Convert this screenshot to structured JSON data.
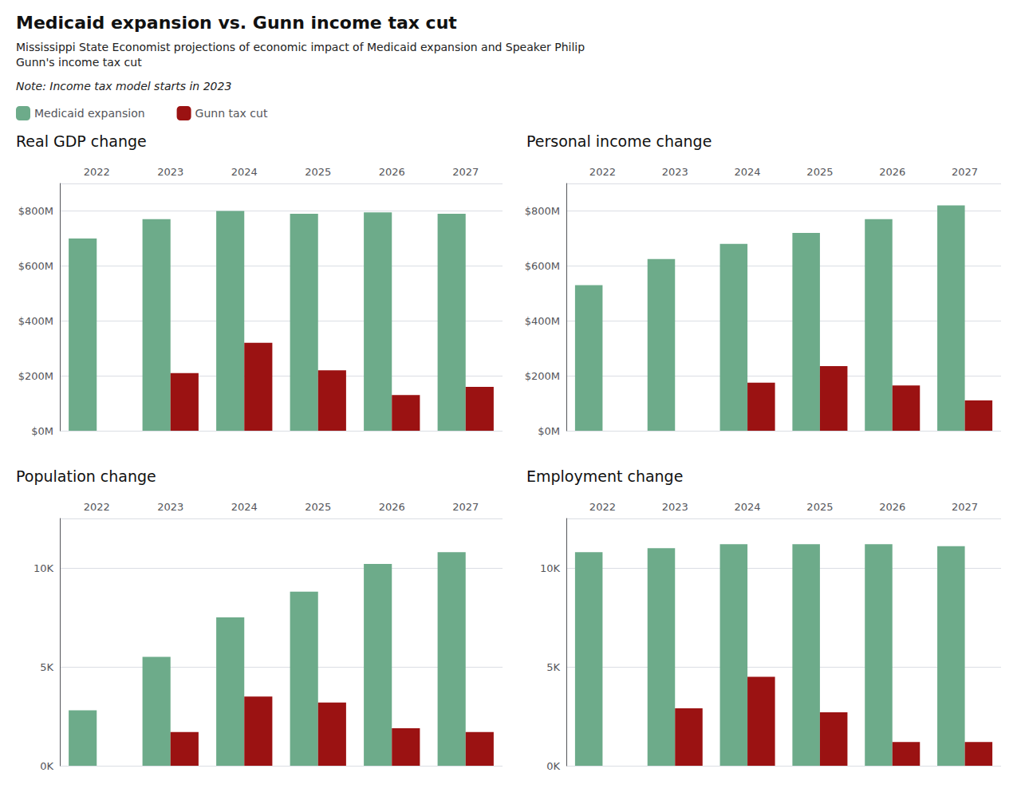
{
  "title": "Medicaid expansion vs. Gunn income tax cut",
  "subtitle": [
    "Mississippi State Economist projections of economic impact of Medicaid expansion and Speaker Philip",
    "Gunn's income tax cut"
  ],
  "annotations": [
    "Note: Income tax model starts in 2023"
  ],
  "legend": "top-left",
  "chart_data": [
    {
      "type": "bar",
      "title": "Real GDP change",
      "categories": [
        "2022",
        "2023",
        "2024",
        "2025",
        "2026",
        "2027"
      ],
      "series": [
        {
          "name": "Medicaid expansion",
          "color": "#6dab8a",
          "values": [
            700,
            770,
            800,
            790,
            795,
            790
          ]
        },
        {
          "name": "Gunn tax cut",
          "color": "#9b1212",
          "values": [
            0,
            210,
            320,
            220,
            130,
            160
          ]
        }
      ],
      "ylim": [
        0,
        900
      ],
      "yticks": [
        {
          "value": 0,
          "label": "$0M"
        },
        {
          "value": 200,
          "label": "$200M"
        },
        {
          "value": 400,
          "label": "$400M"
        },
        {
          "value": 600,
          "label": "$600M"
        },
        {
          "value": 800,
          "label": "$800M"
        }
      ],
      "grid": true
    },
    {
      "type": "bar",
      "title": "Personal income change",
      "categories": [
        "2022",
        "2023",
        "2024",
        "2025",
        "2026",
        "2027"
      ],
      "series": [
        {
          "name": "Medicaid expansion",
          "color": "#6dab8a",
          "values": [
            530,
            625,
            680,
            720,
            770,
            820
          ]
        },
        {
          "name": "Gunn tax cut",
          "color": "#9b1212",
          "values": [
            0,
            0,
            175,
            235,
            165,
            110
          ]
        }
      ],
      "ylim": [
        0,
        900
      ],
      "yticks": [
        {
          "value": 0,
          "label": "$0M"
        },
        {
          "value": 200,
          "label": "$200M"
        },
        {
          "value": 400,
          "label": "$400M"
        },
        {
          "value": 600,
          "label": "$600M"
        },
        {
          "value": 800,
          "label": "$800M"
        }
      ],
      "grid": true
    },
    {
      "type": "bar",
      "title": "Population change",
      "categories": [
        "2022",
        "2023",
        "2024",
        "2025",
        "2026",
        "2027"
      ],
      "series": [
        {
          "name": "Medicaid expansion",
          "color": "#6dab8a",
          "values": [
            2800,
            5500,
            7500,
            8800,
            10200,
            10800
          ]
        },
        {
          "name": "Gunn tax cut",
          "color": "#9b1212",
          "values": [
            0,
            1700,
            3500,
            3200,
            1900,
            1700
          ]
        }
      ],
      "ylim": [
        0,
        12500
      ],
      "yticks": [
        {
          "value": 0,
          "label": "0K"
        },
        {
          "value": 5000,
          "label": "5K"
        },
        {
          "value": 10000,
          "label": "10K"
        }
      ],
      "grid": true
    },
    {
      "type": "bar",
      "title": "Employment change",
      "categories": [
        "2022",
        "2023",
        "2024",
        "2025",
        "2026",
        "2027"
      ],
      "series": [
        {
          "name": "Medicaid expansion",
          "color": "#6dab8a",
          "values": [
            10800,
            11000,
            11200,
            11200,
            11200,
            11100
          ]
        },
        {
          "name": "Gunn tax cut",
          "color": "#9b1212",
          "values": [
            0,
            2900,
            4500,
            2700,
            1200,
            1200
          ]
        }
      ],
      "ylim": [
        0,
        12500
      ],
      "yticks": [
        {
          "value": 0,
          "label": "0K"
        },
        {
          "value": 5000,
          "label": "5K"
        },
        {
          "value": 10000,
          "label": "10K"
        }
      ],
      "grid": true
    }
  ]
}
